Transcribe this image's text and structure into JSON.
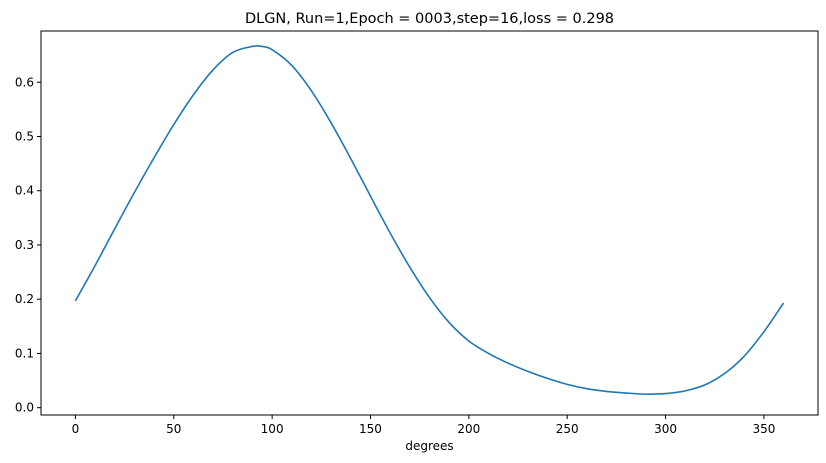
{
  "chart_data": {
    "type": "line",
    "title": "DLGN, Run=1,Epoch = 0003,step=16,loss = 0.298",
    "xlabel": "degrees",
    "ylabel": "",
    "xlim": [
      -17.5,
      377.5
    ],
    "ylim": [
      -0.0135,
      0.6945
    ],
    "xticks": [
      0,
      50,
      100,
      150,
      200,
      250,
      300,
      350
    ],
    "yticks": [
      0.0,
      0.1,
      0.2,
      0.3,
      0.4,
      0.5,
      0.6
    ],
    "ytick_labels": [
      "0.0",
      "0.1",
      "0.2",
      "0.3",
      "0.4",
      "0.5",
      "0.6"
    ],
    "grid": false,
    "series": [
      {
        "color": "#1f77b4",
        "x": [
          0,
          10,
          20,
          30,
          40,
          50,
          60,
          70,
          80,
          90,
          95,
          100,
          110,
          120,
          130,
          140,
          150,
          160,
          170,
          180,
          190,
          200,
          210,
          220,
          230,
          240,
          250,
          260,
          270,
          280,
          290,
          300,
          310,
          320,
          330,
          340,
          350,
          360
        ],
        "y": [
          0.197,
          0.262,
          0.33,
          0.397,
          0.461,
          0.522,
          0.577,
          0.623,
          0.655,
          0.666,
          0.666,
          0.66,
          0.631,
          0.584,
          0.525,
          0.459,
          0.39,
          0.322,
          0.259,
          0.203,
          0.157,
          0.123,
          0.1,
          0.082,
          0.067,
          0.054,
          0.043,
          0.035,
          0.03,
          0.027,
          0.025,
          0.026,
          0.031,
          0.042,
          0.063,
          0.095,
          0.14,
          0.193
        ]
      }
    ]
  }
}
